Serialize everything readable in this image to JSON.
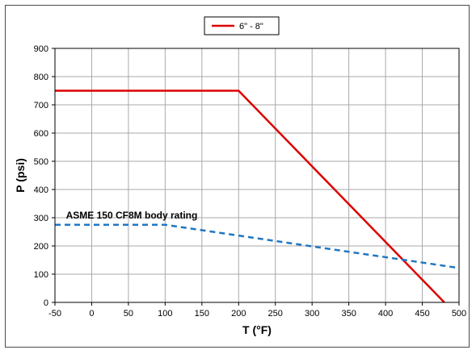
{
  "chart_data": {
    "type": "line",
    "xlabel": "T (°F)",
    "ylabel": "P (psi)",
    "xlim": [
      -50,
      500
    ],
    "ylim": [
      0,
      900
    ],
    "xticks": [
      -50,
      0,
      50,
      100,
      150,
      200,
      250,
      300,
      350,
      400,
      450,
      500
    ],
    "yticks": [
      0,
      100,
      200,
      300,
      400,
      500,
      600,
      700,
      800,
      900
    ],
    "grid": true,
    "legend_position": "top-center",
    "series": [
      {
        "name": "6\" - 8\"",
        "color": "#dd0000",
        "style": "solid",
        "x": [
          -50,
          200,
          480
        ],
        "y": [
          750,
          750,
          0
        ]
      },
      {
        "color": "#1f77c4",
        "style": "dashed",
        "x": [
          -50,
          100,
          500
        ],
        "y": [
          275,
          275,
          122
        ]
      }
    ],
    "annotations": [
      {
        "text": "ASME 150 CF8M body rating",
        "x": -35,
        "y": 297
      }
    ]
  }
}
